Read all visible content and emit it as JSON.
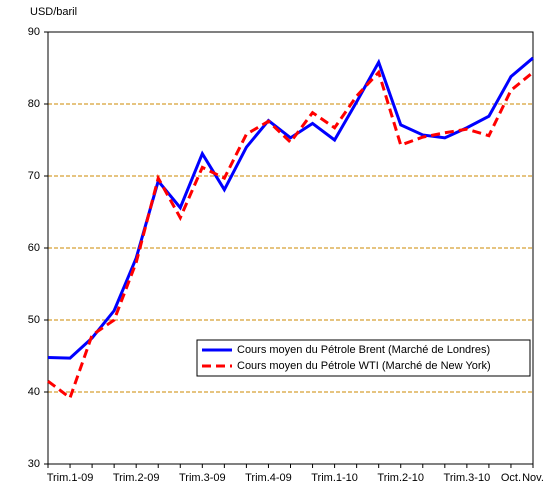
{
  "chart_data": {
    "type": "line",
    "y_label": "USD/baril",
    "categories": [
      null,
      "Trim.1-09",
      null,
      null,
      "Trim.2-09",
      null,
      null,
      "Trim.3-09",
      null,
      null,
      "Trim.4-09",
      null,
      null,
      "Trim.1-10",
      null,
      null,
      "Trim.2-10",
      null,
      null,
      "Trim.3-10",
      null,
      "Oct.",
      "Nov."
    ],
    "series": [
      {
        "name": "Cours moyen du Pétrole Brent (Marché de Londres)",
        "color": "#0000ff",
        "dash": false,
        "values": [
          44.8,
          44.7,
          47.5,
          51.3,
          58.6,
          69.3,
          65.6,
          73.1,
          68.1,
          74.0,
          77.7,
          75.3,
          77.3,
          75.0,
          80.3,
          85.8,
          77.1,
          75.7,
          75.3,
          76.7,
          78.3,
          83.8,
          86.4
        ]
      },
      {
        "name": "Cours moyen du Pétrole WTI (Marché de New York)",
        "color": "#ff0000",
        "dash": true,
        "values": [
          41.5,
          39.2,
          47.9,
          50.0,
          58.0,
          69.7,
          64.2,
          71.2,
          69.7,
          75.8,
          77.6,
          74.7,
          78.8,
          76.7,
          81.1,
          84.4,
          74.3,
          75.4,
          76.0,
          76.5,
          75.6,
          81.9,
          84.4
        ]
      }
    ],
    "ylim": [
      30,
      90
    ],
    "yticks": [
      30,
      40,
      50,
      60,
      70,
      80,
      90
    ],
    "grid": true,
    "grid_color": "#cc8800",
    "legend": "lower right"
  }
}
